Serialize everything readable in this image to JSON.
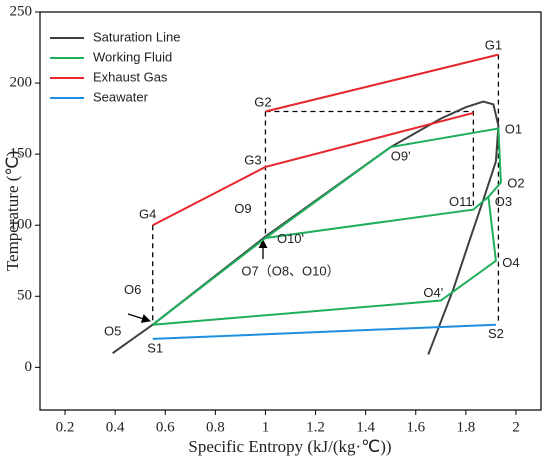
{
  "chart_data": {
    "type": "line",
    "x_label": "Specific Entropy (kJ/(kg·℃))",
    "y_label": "Temperature (℃)",
    "xlim": [
      0.1,
      2.1
    ],
    "ylim": [
      -30,
      250
    ],
    "xticks": [
      0.2,
      0.4,
      0.6,
      0.8,
      1.0,
      1.2,
      1.4,
      1.6,
      1.8,
      2.0
    ],
    "yticks": [
      0,
      50,
      100,
      150,
      200,
      250
    ],
    "legend": "upper left",
    "series": [
      {
        "name": "Saturation Line",
        "color": "#404040",
        "x": [
          0.39,
          0.55,
          1.0,
          1.5,
          1.7,
          1.8,
          1.87,
          1.91,
          1.93,
          1.92,
          1.87,
          1.82,
          1.75,
          1.65
        ],
        "y": [
          10,
          30,
          92,
          155,
          175,
          183,
          187,
          185,
          170,
          145,
          118,
          92,
          55,
          9
        ]
      },
      {
        "name": "Working Fluid",
        "color": "#1fae5b",
        "x": [
          0.55,
          1.0,
          1.5,
          1.93,
          1.94,
          1.89,
          1.92,
          1.7,
          0.55,
          null,
          1.0,
          1.83,
          1.89
        ],
        "y": [
          30,
          91,
          155,
          168,
          130,
          120,
          75,
          47,
          30,
          null,
          91,
          111,
          120
        ]
      },
      {
        "name": "Exhaust Gas",
        "color": "#e8262b",
        "x": [
          0.55,
          1.0,
          1.83,
          null,
          1.0,
          1.93
        ],
        "y": [
          100,
          141,
          179,
          null,
          180,
          220
        ]
      },
      {
        "name": "Seawater",
        "color": "#1e8fe0",
        "x": [
          0.55,
          1.92
        ],
        "y": [
          20,
          30
        ]
      }
    ],
    "dashed_lines": [
      {
        "x": [
          1.93,
          1.93
        ],
        "y": [
          220,
          30
        ]
      },
      {
        "x": [
          1.0,
          1.83,
          1.83
        ],
        "y": [
          180,
          180,
          111
        ]
      },
      {
        "x": [
          1.0,
          1.0
        ],
        "y": [
          180,
          91
        ]
      },
      {
        "x": [
          0.55,
          0.55
        ],
        "y": [
          100,
          30
        ]
      }
    ],
    "annotations": [
      {
        "text": "G1",
        "x": 1.91,
        "y": 226
      },
      {
        "text": "G2",
        "x": 0.99,
        "y": 186
      },
      {
        "text": "G3",
        "x": 0.95,
        "y": 145
      },
      {
        "text": "G4",
        "x": 0.53,
        "y": 107
      },
      {
        "text": "O1",
        "x": 1.99,
        "y": 167
      },
      {
        "text": "O2",
        "x": 2.0,
        "y": 129
      },
      {
        "text": "O3",
        "x": 1.95,
        "y": 116
      },
      {
        "text": "O11",
        "x": 1.78,
        "y": 116
      },
      {
        "text": "O4",
        "x": 1.98,
        "y": 73
      },
      {
        "text": "O4'",
        "x": 1.67,
        "y": 52
      },
      {
        "text": "O9'",
        "x": 1.54,
        "y": 148
      },
      {
        "text": "O9",
        "x": 0.91,
        "y": 111
      },
      {
        "text": "O10'",
        "x": 1.1,
        "y": 90
      },
      {
        "text": "O7（O8、O10）",
        "x": 1.1,
        "y": 67
      },
      {
        "text": "O6",
        "x": 0.47,
        "y": 54
      },
      {
        "text": "O5",
        "x": 0.39,
        "y": 25
      },
      {
        "text": "S1",
        "x": 0.56,
        "y": 13
      },
      {
        "text": "S2",
        "x": 1.92,
        "y": 23
      }
    ]
  }
}
